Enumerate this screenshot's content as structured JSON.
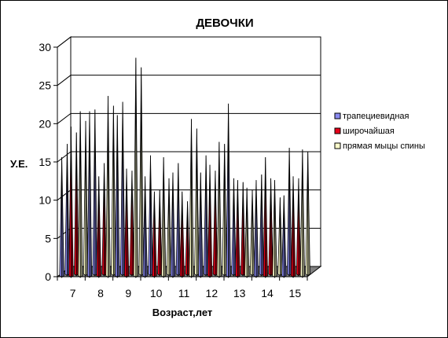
{
  "chart_data": {
    "type": "bar",
    "title": "ДЕВОЧКИ",
    "xlabel": "Возраст,лет",
    "ylabel": "У.Е.",
    "ylim": [
      0,
      30
    ],
    "yticks": [
      0,
      5,
      10,
      15,
      20,
      25,
      30
    ],
    "grid": true,
    "legend_position": "right",
    "categories": [
      "7",
      "8",
      "9",
      "10",
      "11",
      "12",
      "13",
      "14",
      "15"
    ],
    "series": [
      {
        "name": "трапециевидная",
        "color": "#8a8af0",
        "groups": [
          [
            15.5,
            17
          ],
          [
            21.5,
            21.5
          ],
          [
            21,
            22.5
          ],
          [
            13,
            15.5
          ],
          [
            13.5,
            14.5
          ],
          [
            13.5,
            15.5
          ],
          [
            22.5,
            12.5
          ],
          [
            12.5,
            13
          ],
          [
            10.5,
            16.5
          ]
        ]
      },
      {
        "name": "широчайшая",
        "color": "#e8001a",
        "groups": [
          [
            19.5,
            18.5
          ],
          [
            13,
            14.5
          ],
          [
            14,
            13.5
          ],
          [
            11,
            11
          ],
          [
            11,
            9.5
          ],
          [
            14.5,
            13.5
          ],
          [
            12.5,
            12
          ],
          [
            15.5,
            12.5
          ],
          [
            13,
            12.5
          ]
        ]
      },
      {
        "name": "прямая мыцы спины",
        "color": "#ffffcc",
        "groups": [
          [
            21.5,
            20
          ],
          [
            23.5,
            22
          ],
          [
            28.5,
            27
          ],
          [
            15.5,
            12.5
          ],
          [
            20.5,
            19
          ],
          [
            17.5,
            17
          ],
          [
            11.5,
            11
          ],
          [
            12.5,
            10
          ],
          [
            16.5,
            16
          ]
        ]
      }
    ]
  }
}
